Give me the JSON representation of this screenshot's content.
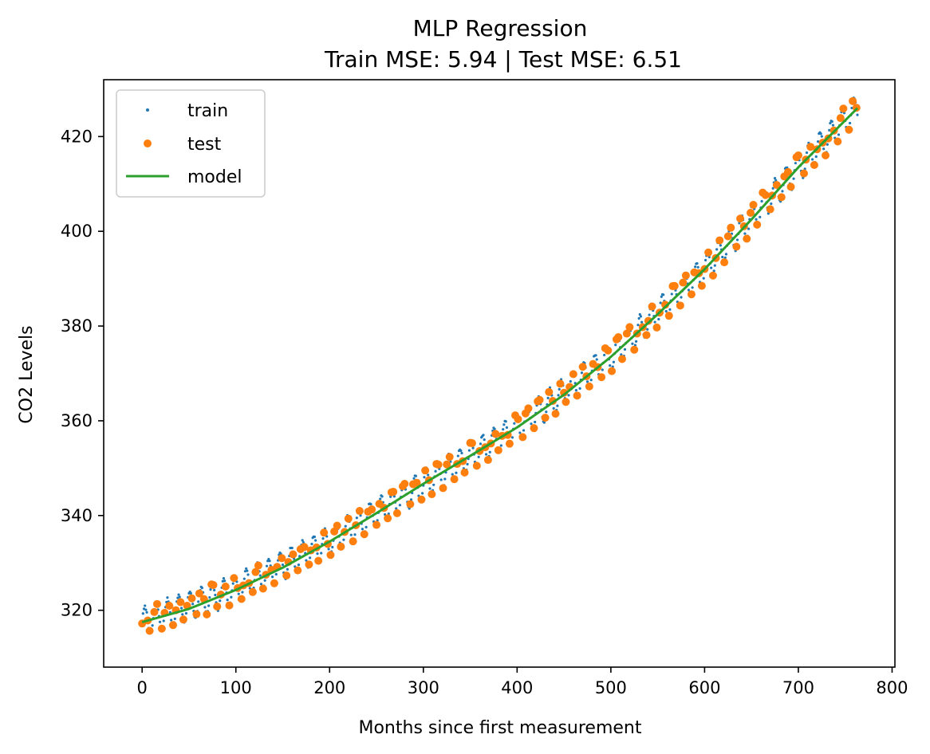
{
  "chart_data": {
    "type": "scatter",
    "title": "MLP Regression",
    "subtitle": "Train MSE: 5.94 | Test MSE: 6.51",
    "xlabel": "Months since first measurement",
    "ylabel": "CO2 Levels",
    "xlim": [
      -41,
      803
    ],
    "ylim": [
      308,
      432
    ],
    "xticks": [
      0,
      100,
      200,
      300,
      400,
      500,
      600,
      700,
      800
    ],
    "yticks": [
      320,
      340,
      360,
      380,
      400,
      420
    ],
    "grid": false,
    "legend_position": "top-left",
    "trend": {
      "x": [
        0,
        100,
        200,
        300,
        400,
        500,
        600,
        700,
        763
      ],
      "y": [
        317.5,
        324.5,
        334.5,
        346.5,
        358.5,
        373.5,
        392.0,
        413.5,
        426.0
      ]
    },
    "seasonal_amplitude": 3.0,
    "series": [
      {
        "name": "train",
        "marker": "small-dot",
        "color": "#1f77b4",
        "x_range": [
          0,
          763
        ],
        "x_step": 1,
        "seed": 7
      },
      {
        "name": "test",
        "marker": "dot",
        "color": "#ff7f0e",
        "x_range": [
          0,
          763
        ],
        "x_step": 4,
        "seed": 19
      },
      {
        "name": "model",
        "marker": "line",
        "color": "#2ca02c",
        "x": [
          0,
          50,
          100,
          150,
          200,
          250,
          300,
          350,
          400,
          450,
          500,
          550,
          600,
          650,
          700,
          763
        ],
        "y": [
          317.5,
          320.3,
          324.3,
          329.0,
          334.5,
          340.5,
          346.7,
          352.6,
          358.6,
          365.5,
          373.5,
          382.5,
          392.0,
          402.5,
          413.5,
          426.0
        ]
      }
    ]
  }
}
